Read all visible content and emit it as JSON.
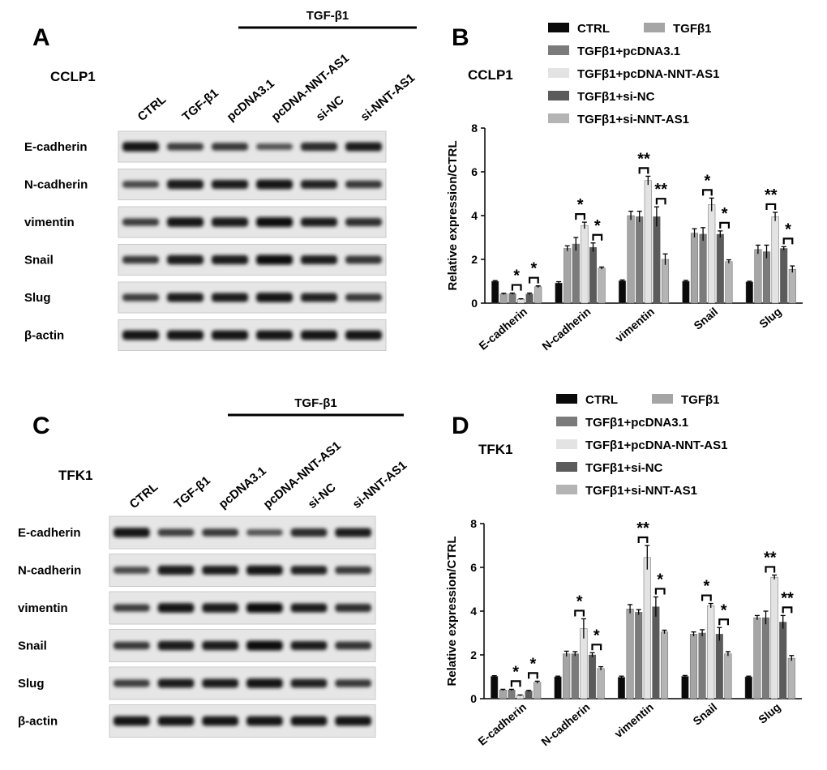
{
  "groups": [
    "CTRL",
    "TGFβ1",
    "TGFβ1+pcDNA3.1",
    "TGFβ1+pcDNA-NNT-AS1",
    "TGFβ1+si-NC",
    "TGFβ1+si-NNT-AS1"
  ],
  "colors": {
    "CTRL": "#0a0a0a",
    "TGFβ1": "#a5a5a5",
    "TGFβ1+pcDNA3.1": "#7b7b7b",
    "TGFβ1+pcDNA-NNT-AS1": "#e3e3e3",
    "TGFβ1+si-NC": "#5b5b5b",
    "TGFβ1+si-NNT-AS1": "#b4b4b4"
  },
  "blot": {
    "lane_labels": [
      "CTRL",
      "TGF-β1",
      "pcDNA3.1",
      "pcDNA-NNT-AS1",
      "si-NC",
      "si-NNT-AS1"
    ],
    "treatment_label": "TGF-β1",
    "proteins": [
      "E-cadherin",
      "N-cadherin",
      "vimentin",
      "Snail",
      "Slug",
      "β-actin"
    ]
  },
  "panels": {
    "A": {
      "letter": "A",
      "cell_line": "CCLP1"
    },
    "B": {
      "letter": "B",
      "cell_line": "CCLP1"
    },
    "C": {
      "letter": "C",
      "cell_line": "TFK1"
    },
    "D": {
      "letter": "D",
      "cell_line": "TFK1"
    }
  },
  "chart_data": [
    {
      "type": "bar",
      "panel": "B",
      "title": "CCLP1",
      "ylabel": "Relative expression/CTRL",
      "xlabel": "",
      "ylim": [
        0,
        8
      ],
      "yticks": [
        0,
        2,
        4,
        6,
        8
      ],
      "categories": [
        "E-cadherin",
        "N-cadherin",
        "vimentin",
        "Snail",
        "Slug"
      ],
      "series": [
        {
          "name": "CTRL",
          "values": [
            1.0,
            0.92,
            1.02,
            1.0,
            0.97
          ],
          "errors": [
            0.03,
            0.06,
            0.04,
            0.04,
            0.03
          ]
        },
        {
          "name": "TGFβ1",
          "values": [
            0.42,
            2.5,
            4.0,
            3.2,
            2.45
          ],
          "errors": [
            0.03,
            0.12,
            0.2,
            0.2,
            0.2
          ]
        },
        {
          "name": "TGFβ1+pcDNA3.1",
          "values": [
            0.43,
            2.7,
            3.95,
            3.15,
            2.35
          ],
          "errors": [
            0.03,
            0.3,
            0.25,
            0.3,
            0.3
          ]
        },
        {
          "name": "TGFβ1+pcDNA-NNT-AS1",
          "values": [
            0.18,
            3.55,
            5.6,
            4.5,
            3.95
          ],
          "errors": [
            0.02,
            0.15,
            0.2,
            0.3,
            0.2
          ]
        },
        {
          "name": "TGFβ1+si-NC",
          "values": [
            0.42,
            2.55,
            3.95,
            3.15,
            2.5
          ],
          "errors": [
            0.04,
            0.2,
            0.45,
            0.15,
            0.08
          ]
        },
        {
          "name": "TGFβ1+si-NNT-AS1",
          "values": [
            0.75,
            1.6,
            2.0,
            1.9,
            1.55
          ],
          "errors": [
            0.04,
            0.05,
            0.25,
            0.08,
            0.15
          ]
        }
      ],
      "annotations": [
        {
          "category": "E-cadherin",
          "pair": "TGFβ1+pcDNA3.1 vs TGFβ1+pcDNA-NNT-AS1",
          "label": "*"
        },
        {
          "category": "E-cadherin",
          "pair": "TGFβ1+si-NC vs TGFβ1+si-NNT-AS1",
          "label": "*"
        },
        {
          "category": "N-cadherin",
          "pair": "TGFβ1+pcDNA3.1 vs TGFβ1+pcDNA-NNT-AS1",
          "label": "*"
        },
        {
          "category": "N-cadherin",
          "pair": "TGFβ1+si-NC vs TGFβ1+si-NNT-AS1",
          "label": "*"
        },
        {
          "category": "vimentin",
          "pair": "TGFβ1+pcDNA3.1 vs TGFβ1+pcDNA-NNT-AS1",
          "label": "**"
        },
        {
          "category": "vimentin",
          "pair": "TGFβ1+si-NC vs TGFβ1+si-NNT-AS1",
          "label": "**"
        },
        {
          "category": "Snail",
          "pair": "TGFβ1+pcDNA3.1 vs TGFβ1+pcDNA-NNT-AS1",
          "label": "*"
        },
        {
          "category": "Snail",
          "pair": "TGFβ1+si-NC vs TGFβ1+si-NNT-AS1",
          "label": "*"
        },
        {
          "category": "Slug",
          "pair": "TGFβ1+pcDNA3.1 vs TGFβ1+pcDNA-NNT-AS1",
          "label": "**"
        },
        {
          "category": "Slug",
          "pair": "TGFβ1+si-NC vs TGFβ1+si-NNT-AS1",
          "label": "*"
        }
      ],
      "legend": "top-right",
      "grid": false
    },
    {
      "type": "bar",
      "panel": "D",
      "title": "TFK1",
      "ylabel": "Relative expression/CTRL",
      "xlabel": "",
      "ylim": [
        0,
        8
      ],
      "yticks": [
        0,
        2,
        4,
        6,
        8
      ],
      "categories": [
        "E-cadherin",
        "N-cadherin",
        "vimentin",
        "Snail",
        "Slug"
      ],
      "series": [
        {
          "name": "CTRL",
          "values": [
            1.02,
            1.0,
            0.98,
            1.02,
            1.0
          ],
          "errors": [
            0.03,
            0.03,
            0.05,
            0.04,
            0.03
          ]
        },
        {
          "name": "TGFβ1",
          "values": [
            0.4,
            2.05,
            4.1,
            2.95,
            3.7
          ],
          "errors": [
            0.03,
            0.12,
            0.2,
            0.1,
            0.1
          ]
        },
        {
          "name": "TGFβ1+pcDNA3.1",
          "values": [
            0.4,
            2.05,
            3.95,
            3.0,
            3.7
          ],
          "errors": [
            0.03,
            0.1,
            0.12,
            0.15,
            0.3
          ]
        },
        {
          "name": "TGFβ1+pcDNA-NNT-AS1",
          "values": [
            0.15,
            3.2,
            6.45,
            4.25,
            5.55
          ],
          "errors": [
            0.02,
            0.45,
            0.55,
            0.1,
            0.1
          ]
        },
        {
          "name": "TGFβ1+si-NC",
          "values": [
            0.35,
            2.0,
            4.2,
            2.95,
            3.5
          ],
          "errors": [
            0.03,
            0.1,
            0.45,
            0.3,
            0.3
          ]
        },
        {
          "name": "TGFβ1+si-NNT-AS1",
          "values": [
            0.75,
            1.38,
            3.05,
            2.05,
            1.85
          ],
          "errors": [
            0.05,
            0.08,
            0.08,
            0.1,
            0.12
          ]
        }
      ],
      "annotations": [
        {
          "category": "E-cadherin",
          "pair": "TGFβ1+pcDNA3.1 vs TGFβ1+pcDNA-NNT-AS1",
          "label": "*"
        },
        {
          "category": "E-cadherin",
          "pair": "TGFβ1+si-NC vs TGFβ1+si-NNT-AS1",
          "label": "*"
        },
        {
          "category": "N-cadherin",
          "pair": "TGFβ1+pcDNA3.1 vs TGFβ1+pcDNA-NNT-AS1",
          "label": "*"
        },
        {
          "category": "N-cadherin",
          "pair": "TGFβ1+si-NC vs TGFβ1+si-NNT-AS1",
          "label": "*"
        },
        {
          "category": "vimentin",
          "pair": "TGFβ1+pcDNA3.1 vs TGFβ1+pcDNA-NNT-AS1",
          "label": "**"
        },
        {
          "category": "vimentin",
          "pair": "TGFβ1+si-NC vs TGFβ1+si-NNT-AS1",
          "label": "*"
        },
        {
          "category": "Snail",
          "pair": "TGFβ1+pcDNA3.1 vs TGFβ1+pcDNA-NNT-AS1",
          "label": "*"
        },
        {
          "category": "Snail",
          "pair": "TGFβ1+si-NC vs TGFβ1+si-NNT-AS1",
          "label": "*"
        },
        {
          "category": "Slug",
          "pair": "TGFβ1+pcDNA3.1 vs TGFβ1+pcDNA-NNT-AS1",
          "label": "**"
        },
        {
          "category": "Slug",
          "pair": "TGFβ1+si-NC vs TGFβ1+si-NNT-AS1",
          "label": "**"
        }
      ],
      "legend": "top-right",
      "grid": false
    }
  ]
}
